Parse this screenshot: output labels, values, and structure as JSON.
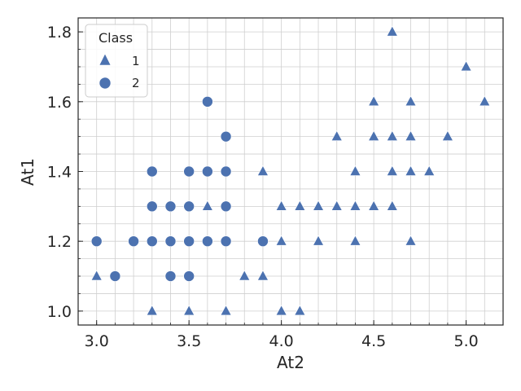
{
  "chart_data": {
    "type": "scatter",
    "xlabel": "At2",
    "ylabel": "At1",
    "xlim": [
      2.9,
      5.2
    ],
    "ylim": [
      0.96,
      1.84
    ],
    "x_ticks": [
      3.0,
      3.5,
      4.0,
      4.5,
      5.0
    ],
    "x_tick_labels": [
      "3.0",
      "3.5",
      "4.0",
      "4.5",
      "5.0"
    ],
    "y_ticks": [
      1.0,
      1.2,
      1.4,
      1.6,
      1.8
    ],
    "y_tick_labels": [
      "1.0",
      "1.2",
      "1.4",
      "1.6",
      "1.8"
    ],
    "grid": true,
    "color": "#4c72b0",
    "legend": {
      "title": "Class",
      "placement": "top-left",
      "entries": [
        {
          "label": "1",
          "marker": "triangle"
        },
        {
          "label": "2",
          "marker": "circle"
        }
      ]
    },
    "series": [
      {
        "name": "1",
        "marker": "triangle",
        "points": [
          [
            4.6,
            1.8
          ],
          [
            5.0,
            1.7
          ],
          [
            4.5,
            1.6
          ],
          [
            4.7,
            1.6
          ],
          [
            5.1,
            1.6
          ],
          [
            4.3,
            1.5
          ],
          [
            4.5,
            1.5
          ],
          [
            4.6,
            1.5
          ],
          [
            4.7,
            1.5
          ],
          [
            4.9,
            1.5
          ],
          [
            3.9,
            1.4
          ],
          [
            4.4,
            1.4
          ],
          [
            4.6,
            1.4
          ],
          [
            4.7,
            1.4
          ],
          [
            4.8,
            1.4
          ],
          [
            3.6,
            1.3
          ],
          [
            4.0,
            1.3
          ],
          [
            4.1,
            1.3
          ],
          [
            4.2,
            1.3
          ],
          [
            4.3,
            1.3
          ],
          [
            4.4,
            1.3
          ],
          [
            4.5,
            1.3
          ],
          [
            4.6,
            1.3
          ],
          [
            4.0,
            1.2
          ],
          [
            4.2,
            1.2
          ],
          [
            4.4,
            1.2
          ],
          [
            4.7,
            1.2
          ],
          [
            3.0,
            1.1
          ],
          [
            3.8,
            1.1
          ],
          [
            3.9,
            1.1
          ],
          [
            3.3,
            1.0
          ],
          [
            3.5,
            1.0
          ],
          [
            3.7,
            1.0
          ],
          [
            4.0,
            1.0
          ],
          [
            4.1,
            1.0
          ]
        ]
      },
      {
        "name": "2",
        "marker": "circle",
        "points": [
          [
            3.6,
            1.6
          ],
          [
            3.7,
            1.5
          ],
          [
            3.3,
            1.4
          ],
          [
            3.5,
            1.4
          ],
          [
            3.6,
            1.4
          ],
          [
            3.7,
            1.4
          ],
          [
            3.3,
            1.3
          ],
          [
            3.4,
            1.3
          ],
          [
            3.5,
            1.3
          ],
          [
            3.7,
            1.3
          ],
          [
            3.0,
            1.2
          ],
          [
            3.2,
            1.2
          ],
          [
            3.3,
            1.2
          ],
          [
            3.4,
            1.2
          ],
          [
            3.5,
            1.2
          ],
          [
            3.6,
            1.2
          ],
          [
            3.7,
            1.2
          ],
          [
            3.9,
            1.2
          ],
          [
            3.1,
            1.1
          ],
          [
            3.4,
            1.1
          ],
          [
            3.5,
            1.1
          ]
        ]
      }
    ]
  }
}
